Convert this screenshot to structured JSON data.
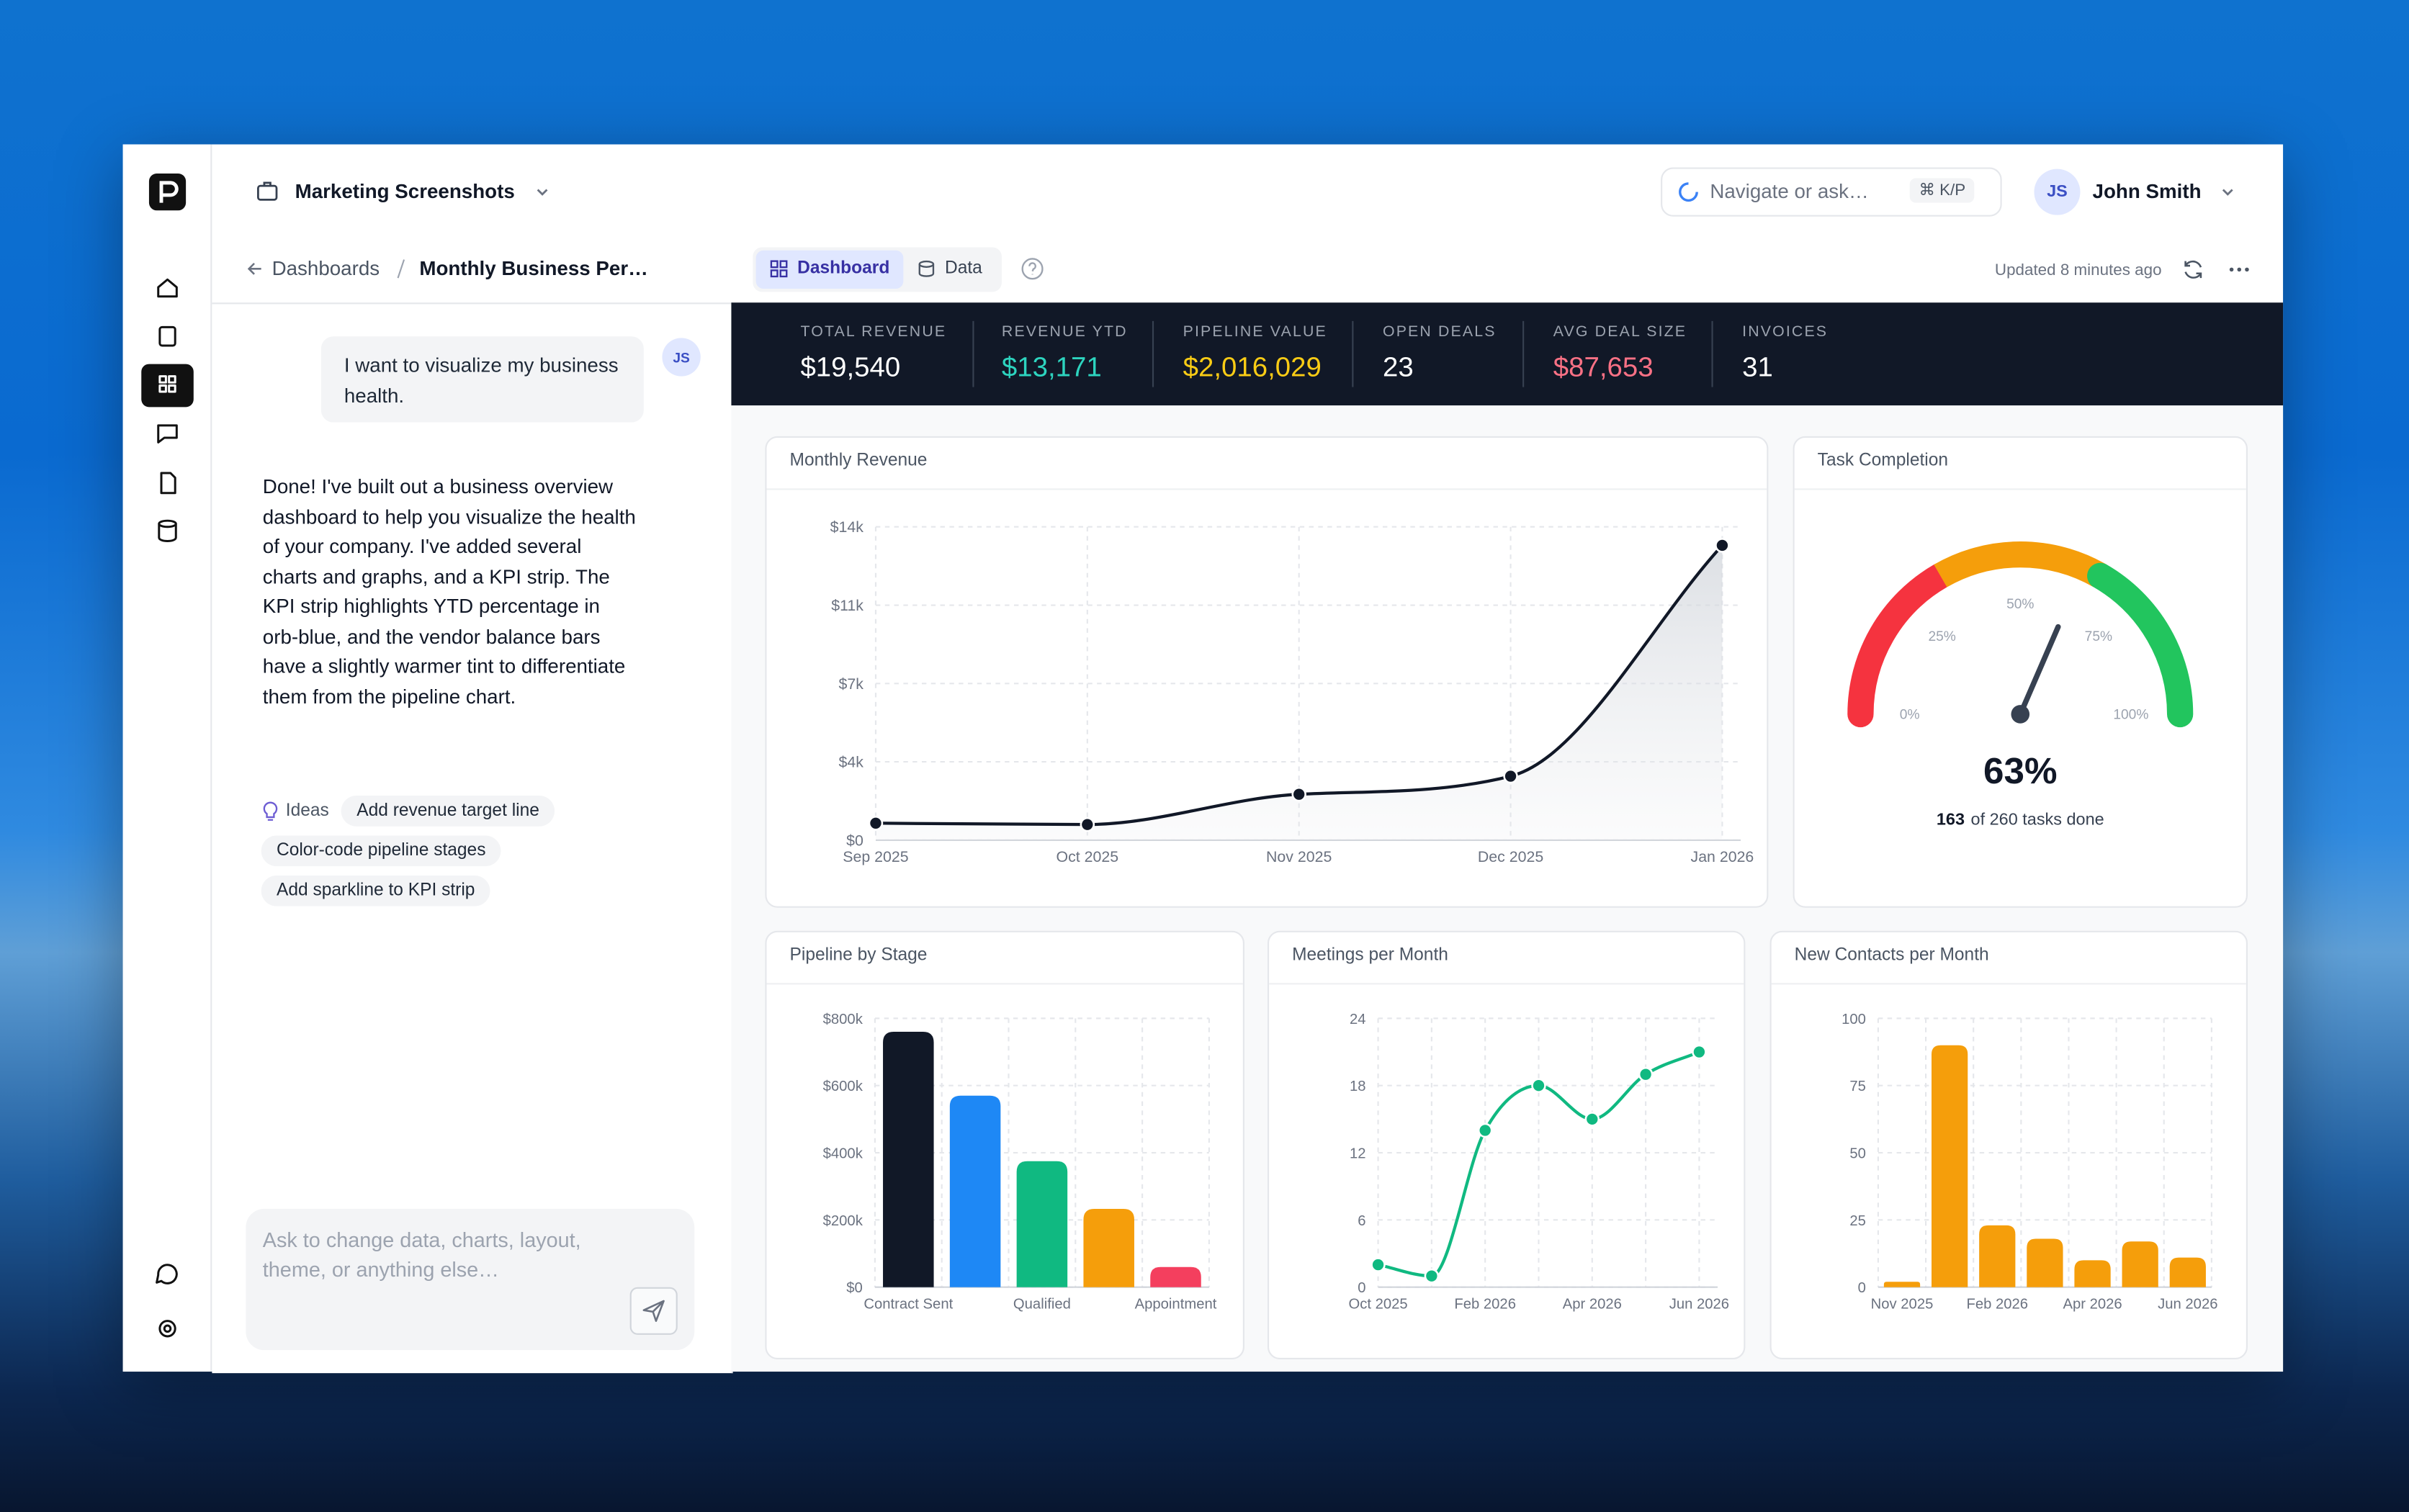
{
  "header": {
    "workspace": "Marketing Screenshots",
    "search_placeholder": "Navigate or ask…",
    "shortcut": "⌘ K/P",
    "user_initials": "JS",
    "user_name": "John Smith"
  },
  "toolbar": {
    "breadcrumb_parent": "Dashboards",
    "breadcrumb_current": "Monthly Business Per…",
    "tabs": [
      "Dashboard",
      "Data"
    ],
    "updated": "Updated 8 minutes ago"
  },
  "chat": {
    "user_initials": "JS",
    "user_message": "I want to visualize my business health.",
    "assistant_message": "Done! I've built out a business overview dashboard to help you visualize the health of your company. I've added several charts and graphs, and a KPI strip. The KPI strip highlights YTD percentage in orb-blue, and the vendor balance bars have a slightly warmer tint to differentiate them from the pipeline chart.",
    "ideas_label": "Ideas",
    "ideas": [
      "Add revenue target line",
      "Color-code pipeline stages",
      "Add sparkline to KPI strip"
    ],
    "input_placeholder": "Ask to change data, charts, layout, theme, or anything else…"
  },
  "kpis": [
    {
      "label": "TOTAL REVENUE",
      "value": "$19,540",
      "color": "#ffffff"
    },
    {
      "label": "REVENUE YTD",
      "value": "$13,171",
      "color": "#2dd4bf"
    },
    {
      "label": "PIPELINE VALUE",
      "value": "$2,016,029",
      "color": "#facc15"
    },
    {
      "label": "OPEN DEALS",
      "value": "23",
      "color": "#ffffff"
    },
    {
      "label": "AVG DEAL SIZE",
      "value": "$87,653",
      "color": "#fb7185"
    },
    {
      "label": "INVOICES",
      "value": "31",
      "color": "#ffffff"
    }
  ],
  "chart_data": [
    {
      "type": "line",
      "title": "Monthly Revenue",
      "categories": [
        "Sep 2025",
        "Oct 2025",
        "Nov 2025",
        "Dec 2025",
        "Jan 2026"
      ],
      "values": [
        760,
        700,
        2050,
        2859,
        13171
      ],
      "color": "#111827",
      "area": true,
      "markers": true,
      "ylim": [
        0,
        14000
      ],
      "yticks": [
        {
          "value": 0,
          "label": "$0"
        },
        {
          "value": 3500,
          "label": "$4k"
        },
        {
          "value": 7000,
          "label": "$7k"
        },
        {
          "value": 10500,
          "label": "$11k"
        },
        {
          "value": 14000,
          "label": "$14k"
        }
      ],
      "grid": true
    },
    {
      "type": "gauge",
      "title": "Task Completion",
      "value": 63,
      "value_label": "63%",
      "ylim": [
        0,
        100
      ],
      "yticks": [
        {
          "value": 0,
          "label": "0%"
        },
        {
          "value": 25,
          "label": "25%"
        },
        {
          "value": 50,
          "label": "50%"
        },
        {
          "value": 75,
          "label": "75%"
        },
        {
          "value": 100,
          "label": "100%"
        }
      ],
      "colors": [
        "#f5333f",
        "#f59e0b",
        "#22c55e"
      ],
      "caption_count": "163",
      "caption_text": "of 260 tasks done"
    },
    {
      "type": "bar",
      "title": "Pipeline by Stage",
      "categories": [
        "Contract Sent",
        null,
        "Qualified",
        null,
        "Appointment"
      ],
      "values": [
        760000,
        570000,
        375000,
        233000,
        60000
      ],
      "colors": [
        "#111827",
        "#1e88f5",
        "#10b981",
        "#f59e0b",
        "#f43f5e"
      ],
      "ylim": [
        0,
        800000
      ],
      "yticks": [
        {
          "value": 0,
          "label": "$0"
        },
        {
          "value": 200000,
          "label": "$200k"
        },
        {
          "value": 400000,
          "label": "$400k"
        },
        {
          "value": 600000,
          "label": "$600k"
        },
        {
          "value": 800000,
          "label": "$800k"
        }
      ],
      "grid": true
    },
    {
      "type": "line",
      "title": "Meetings per Month",
      "categories": [
        "Oct 2025",
        null,
        "Feb 2026",
        null,
        "Apr 2026",
        null,
        "Jun 2026"
      ],
      "values": [
        2,
        1,
        14,
        18,
        15,
        19,
        21
      ],
      "color": "#10b981",
      "area": false,
      "markers": true,
      "ylim": [
        0,
        24
      ],
      "yticks": [
        0,
        6,
        12,
        18,
        24
      ],
      "grid": true
    },
    {
      "type": "bar",
      "title": "New Contacts per Month",
      "categories": [
        "Nov 2025",
        null,
        "Feb 2026",
        null,
        "Apr 2026",
        null,
        "Jun 2026"
      ],
      "values": [
        2,
        90,
        23,
        18,
        10,
        17,
        11
      ],
      "color": "#f59e0b",
      "ylim": [
        0,
        100
      ],
      "yticks": [
        0,
        25,
        50,
        75,
        100
      ],
      "grid": true
    }
  ]
}
